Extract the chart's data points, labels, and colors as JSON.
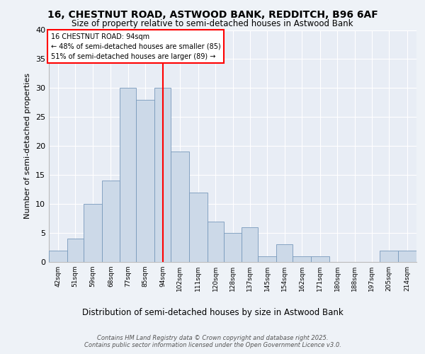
{
  "title_line1": "16, CHESTNUT ROAD, ASTWOOD BANK, REDDITCH, B96 6AF",
  "title_line2": "Size of property relative to semi-detached houses in Astwood Bank",
  "xlabel": "Distribution of semi-detached houses by size in Astwood Bank",
  "ylabel": "Number of semi-detached properties",
  "footer_line1": "Contains HM Land Registry data © Crown copyright and database right 2025.",
  "footer_line2": "Contains public sector information licensed under the Open Government Licence v3.0.",
  "annotation_title": "16 CHESTNUT ROAD: 94sqm",
  "annotation_line2": "← 48% of semi-detached houses are smaller (85)",
  "annotation_line3": "51% of semi-detached houses are larger (89) →",
  "bar_color": "#ccd9e8",
  "bar_edge_color": "#7799bb",
  "highlight_line_color": "red",
  "categories": [
    "42sqm",
    "51sqm",
    "59sqm",
    "68sqm",
    "77sqm",
    "85sqm",
    "94sqm",
    "102sqm",
    "111sqm",
    "120sqm",
    "128sqm",
    "137sqm",
    "145sqm",
    "154sqm",
    "162sqm",
    "171sqm",
    "180sqm",
    "188sqm",
    "197sqm",
    "205sqm",
    "214sqm"
  ],
  "bin_edges": [
    42,
    51,
    59,
    68,
    77,
    85,
    94,
    102,
    111,
    120,
    128,
    137,
    145,
    154,
    162,
    171,
    180,
    188,
    197,
    205,
    214,
    223
  ],
  "values": [
    2,
    4,
    10,
    14,
    30,
    28,
    30,
    19,
    12,
    7,
    5,
    6,
    1,
    3,
    1,
    1,
    0,
    0,
    0,
    2,
    2
  ],
  "highlight_bin_index": 6,
  "ylim": [
    0,
    40
  ],
  "yticks": [
    0,
    5,
    10,
    15,
    20,
    25,
    30,
    35,
    40
  ],
  "background_color": "#eef2f7",
  "plot_bg_color": "#e8edf5",
  "grid_color": "#ffffff",
  "annotation_box_color": "#ffffff",
  "annotation_box_edge": "red"
}
